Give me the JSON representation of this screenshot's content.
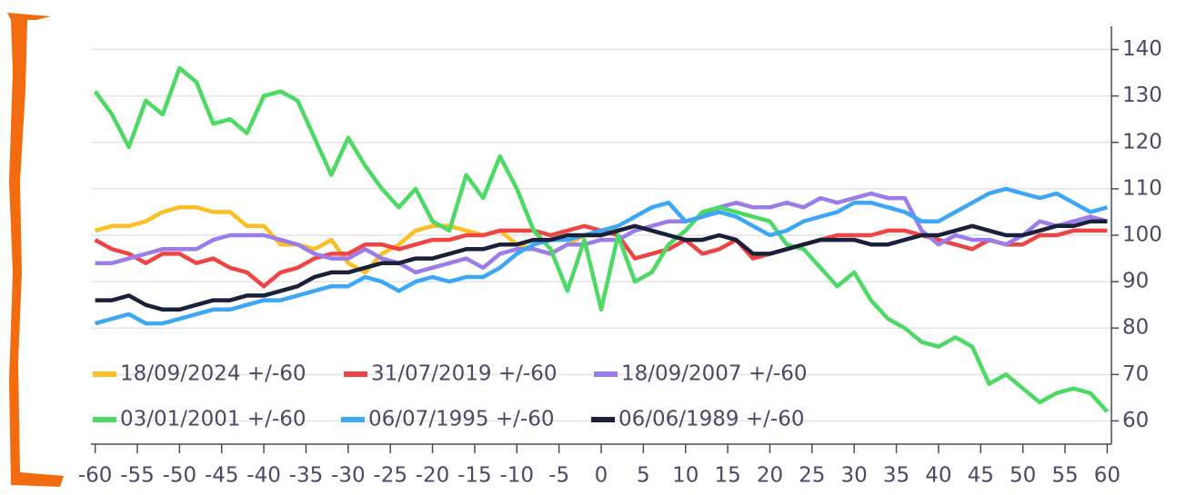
{
  "chart_data": {
    "type": "line",
    "x": [
      -60,
      -58,
      -56,
      -54,
      -52,
      -50,
      -48,
      -46,
      -44,
      -42,
      -40,
      -38,
      -36,
      -34,
      -32,
      -30,
      -28,
      -26,
      -24,
      -22,
      -20,
      -18,
      -16,
      -14,
      -12,
      -10,
      -8,
      -6,
      -4,
      -2,
      0,
      2,
      4,
      6,
      8,
      10,
      12,
      14,
      16,
      18,
      20,
      22,
      24,
      26,
      28,
      30,
      32,
      34,
      36,
      38,
      40,
      42,
      44,
      46,
      48,
      50,
      52,
      54,
      56,
      58,
      60
    ],
    "series": [
      {
        "name": "18/09/2024 +/-60",
        "color": "#fbbf24",
        "values": [
          101,
          102,
          102,
          103,
          105,
          106,
          106,
          105,
          105,
          102,
          102,
          98,
          98,
          97,
          99,
          94,
          92,
          96,
          98,
          101,
          102,
          102,
          101,
          100,
          101,
          98,
          97,
          96,
          98,
          100,
          100,
          102,
          null,
          null,
          null,
          null,
          null,
          null,
          null,
          null,
          null,
          null,
          null,
          null,
          null,
          null,
          null,
          null,
          null,
          null,
          null,
          null,
          null,
          null,
          null,
          null,
          null,
          null,
          null,
          null,
          null
        ]
      },
      {
        "name": "31/07/2019 +/-60",
        "color": "#ef4444",
        "values": [
          99,
          97,
          96,
          94,
          96,
          96,
          94,
          95,
          93,
          92,
          89,
          92,
          93,
          95,
          96,
          96,
          98,
          98,
          97,
          98,
          99,
          99,
          100,
          100,
          101,
          101,
          101,
          100,
          101,
          102,
          101,
          100,
          95,
          96,
          97,
          99,
          96,
          97,
          99,
          95,
          96,
          97,
          98,
          99,
          100,
          100,
          100,
          101,
          101,
          100,
          99,
          98,
          97,
          99,
          98,
          98,
          100,
          100,
          101,
          101,
          101
        ]
      },
      {
        "name": "18/09/2007 +/-60",
        "color": "#9b7ce8",
        "values": [
          94,
          94,
          95,
          96,
          97,
          97,
          97,
          99,
          100,
          100,
          100,
          99,
          98,
          96,
          95,
          95,
          97,
          95,
          94,
          92,
          93,
          94,
          95,
          93,
          96,
          97,
          97,
          96,
          98,
          98,
          99,
          99,
          101,
          102,
          103,
          103,
          104,
          106,
          107,
          106,
          106,
          107,
          106,
          108,
          107,
          108,
          109,
          108,
          108,
          101,
          98,
          100,
          99,
          99,
          98,
          100,
          103,
          102,
          103,
          104,
          103
        ]
      },
      {
        "name": "03/01/2001 +/-60",
        "color": "#4cd964",
        "values": [
          131,
          126,
          119,
          129,
          126,
          136,
          133,
          124,
          125,
          122,
          130,
          131,
          129,
          121,
          113,
          121,
          115,
          110,
          106,
          110,
          103,
          101,
          113,
          108,
          117,
          110,
          101,
          97,
          88,
          99,
          84,
          100,
          90,
          92,
          98,
          101,
          105,
          106,
          105,
          104,
          103,
          98,
          97,
          93,
          89,
          92,
          86,
          82,
          80,
          77,
          76,
          78,
          76,
          68,
          70,
          67,
          64,
          66,
          67,
          66,
          62
        ]
      },
      {
        "name": "06/07/1995 +/-60",
        "color": "#3ba7f5",
        "values": [
          81,
          82,
          83,
          81,
          81,
          82,
          83,
          84,
          84,
          85,
          86,
          86,
          87,
          88,
          89,
          89,
          91,
          90,
          88,
          90,
          91,
          90,
          91,
          91,
          93,
          96,
          98,
          99,
          99,
          100,
          101,
          102,
          104,
          106,
          107,
          103,
          104,
          105,
          104,
          102,
          100,
          101,
          103,
          104,
          105,
          107,
          107,
          106,
          105,
          103,
          103,
          105,
          107,
          109,
          110,
          109,
          108,
          109,
          107,
          105,
          106
        ]
      },
      {
        "name": "06/06/1989 +/-60",
        "color": "#1a1f3a",
        "values": [
          86,
          86,
          87,
          85,
          84,
          84,
          85,
          86,
          86,
          87,
          87,
          88,
          89,
          91,
          92,
          92,
          93,
          94,
          94,
          95,
          95,
          96,
          97,
          97,
          98,
          98,
          99,
          99,
          100,
          100,
          100,
          101,
          102,
          101,
          100,
          99,
          99,
          100,
          99,
          96,
          96,
          97,
          98,
          99,
          99,
          99,
          98,
          98,
          99,
          100,
          100,
          101,
          102,
          101,
          100,
          100,
          101,
          102,
          102,
          103,
          103
        ]
      }
    ],
    "xlim": [
      -60.5,
      60.5
    ],
    "xticks": [
      -60,
      -55,
      -50,
      -45,
      -40,
      -35,
      -30,
      -25,
      -20,
      -15,
      -10,
      -5,
      0,
      5,
      10,
      15,
      20,
      25,
      30,
      35,
      40,
      45,
      50,
      55,
      60
    ],
    "ylim": [
      55,
      145
    ],
    "yticks": [
      60,
      70,
      80,
      90,
      100,
      110,
      120,
      130,
      140
    ],
    "grid": true
  }
}
